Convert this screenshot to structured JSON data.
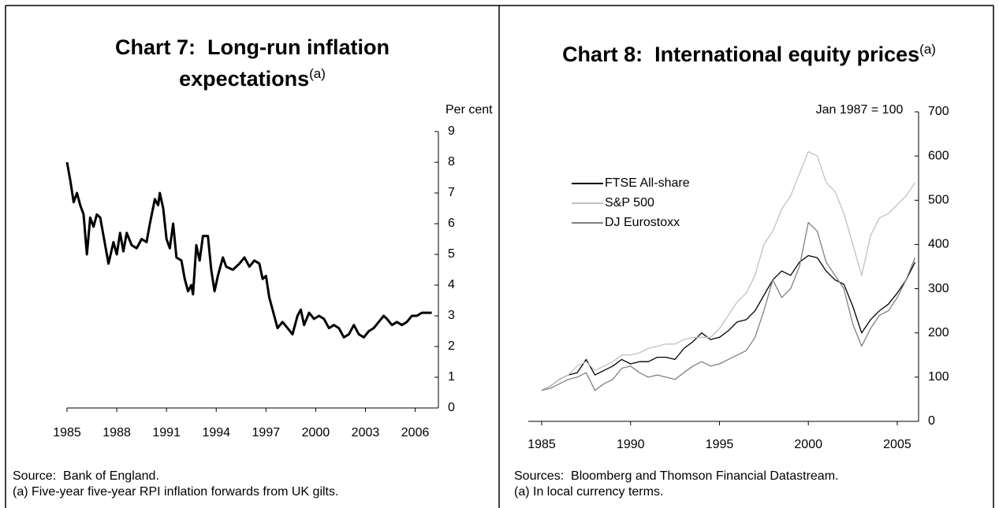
{
  "chart_data": [
    {
      "type": "line",
      "title": "Chart 7:  Long-run inflation expectations",
      "title_note": "(a)",
      "y_label": "Per cent",
      "source": "Source:  Bank of England.",
      "footnote": "(a) Five-year five-year RPI inflation forwards from UK gilts.",
      "color": "#000000",
      "x": [
        1985.0,
        1985.2,
        1985.4,
        1985.6,
        1985.8,
        1986.0,
        1986.2,
        1986.4,
        1986.6,
        1986.8,
        1987.0,
        1987.2,
        1987.5,
        1987.8,
        1988.0,
        1988.2,
        1988.4,
        1988.6,
        1988.9,
        1989.2,
        1989.5,
        1989.8,
        1990.0,
        1990.3,
        1990.5,
        1990.6,
        1990.8,
        1991.0,
        1991.2,
        1991.4,
        1991.6,
        1991.9,
        1992.1,
        1992.3,
        1992.5,
        1992.6,
        1992.8,
        1993.0,
        1993.2,
        1993.5,
        1993.7,
        1993.9,
        1994.1,
        1994.4,
        1994.6,
        1995.0,
        1995.4,
        1995.7,
        1996.0,
        1996.3,
        1996.6,
        1996.8,
        1997.0,
        1997.2,
        1997.5,
        1997.7,
        1998.0,
        1998.3,
        1998.6,
        1998.9,
        1999.1,
        1999.3,
        1999.6,
        1999.9,
        2000.2,
        2000.5,
        2000.8,
        2001.1,
        2001.4,
        2001.7,
        2002.0,
        2002.3,
        2002.6,
        2002.9,
        2003.2,
        2003.5,
        2003.8,
        2004.1,
        2004.3,
        2004.6,
        2004.9,
        2005.2,
        2005.5,
        2005.8,
        2006.1,
        2006.4,
        2006.7,
        2007.0
      ],
      "values": [
        8.0,
        7.4,
        6.7,
        7.0,
        6.6,
        6.3,
        5.0,
        6.2,
        5.9,
        6.3,
        6.2,
        5.6,
        4.7,
        5.4,
        5.0,
        5.7,
        5.1,
        5.7,
        5.3,
        5.2,
        5.5,
        5.4,
        6.0,
        6.8,
        6.6,
        7.0,
        6.5,
        5.5,
        5.2,
        6.0,
        4.9,
        4.8,
        4.2,
        3.8,
        4.0,
        3.7,
        5.3,
        4.8,
        5.6,
        5.6,
        4.5,
        3.8,
        4.3,
        4.9,
        4.6,
        4.5,
        4.7,
        4.9,
        4.6,
        4.8,
        4.7,
        4.2,
        4.3,
        3.6,
        3.0,
        2.6,
        2.8,
        2.6,
        2.4,
        3.0,
        3.2,
        2.7,
        3.1,
        2.9,
        3.0,
        2.9,
        2.6,
        2.7,
        2.6,
        2.3,
        2.4,
        2.7,
        2.4,
        2.3,
        2.5,
        2.6,
        2.8,
        3.0,
        2.9,
        2.7,
        2.8,
        2.7,
        2.8,
        3.0,
        3.0,
        3.1,
        3.1,
        3.1
      ],
      "xlim": [
        1985,
        2007.4
      ],
      "xticks": [
        1985,
        1988,
        1991,
        1994,
        1997,
        2000,
        2003,
        2006
      ],
      "ylim": [
        0,
        9
      ],
      "yticks": [
        0,
        1,
        2,
        3,
        4,
        5,
        6,
        7,
        8,
        9
      ]
    },
    {
      "type": "line",
      "title": "Chart 8:  International equity prices",
      "title_note": "(a)",
      "y_label": "Jan 1987 = 100",
      "source": "Sources:  Bloomberg and Thomson Financial Datastream.",
      "footnote": "(a) In local currency terms.",
      "x": [
        1985.0,
        1985.5,
        1986.0,
        1986.5,
        1987.0,
        1987.5,
        1988.0,
        1988.5,
        1989.0,
        1989.5,
        1990.0,
        1990.5,
        1991.0,
        1991.5,
        1992.0,
        1992.5,
        1993.0,
        1993.5,
        1994.0,
        1994.5,
        1995.0,
        1995.5,
        1996.0,
        1996.5,
        1997.0,
        1997.5,
        1998.0,
        1998.5,
        1999.0,
        1999.5,
        2000.0,
        2000.5,
        2001.0,
        2001.5,
        2002.0,
        2002.5,
        2003.0,
        2003.5,
        2004.0,
        2004.5,
        2005.0,
        2005.5,
        2006.0
      ],
      "series": [
        {
          "name": "FTSE All-share",
          "color": "#000000",
          "values": [
            70,
            80,
            95,
            105,
            110,
            140,
            105,
            115,
            125,
            140,
            130,
            135,
            135,
            145,
            145,
            140,
            165,
            180,
            200,
            185,
            190,
            205,
            225,
            230,
            250,
            285,
            320,
            340,
            330,
            360,
            375,
            370,
            340,
            320,
            310,
            260,
            200,
            230,
            250,
            265,
            290,
            320,
            360
          ]
        },
        {
          "name": "S&P 500",
          "color": "#c0c0c0",
          "values": [
            70,
            80,
            95,
            105,
            125,
            135,
            115,
            125,
            135,
            150,
            150,
            155,
            165,
            170,
            175,
            175,
            185,
            190,
            190,
            190,
            210,
            240,
            270,
            290,
            330,
            400,
            430,
            480,
            510,
            560,
            610,
            600,
            540,
            520,
            470,
            400,
            330,
            420,
            460,
            470,
            490,
            510,
            540
          ]
        },
        {
          "name": "DJ Eurostoxx",
          "color": "#808080",
          "values": [
            70,
            75,
            85,
            95,
            100,
            110,
            70,
            85,
            95,
            120,
            125,
            110,
            100,
            105,
            100,
            95,
            110,
            125,
            135,
            125,
            130,
            140,
            150,
            160,
            190,
            250,
            320,
            280,
            300,
            350,
            450,
            430,
            360,
            330,
            300,
            220,
            170,
            210,
            240,
            250,
            280,
            320,
            370
          ]
        }
      ],
      "xlim": [
        1985,
        2006.2
      ],
      "xticks": [
        1985,
        1990,
        1995,
        2000,
        2005
      ],
      "ylim": [
        0,
        700
      ],
      "yticks": [
        0,
        100,
        200,
        300,
        400,
        500,
        600,
        700
      ]
    }
  ]
}
